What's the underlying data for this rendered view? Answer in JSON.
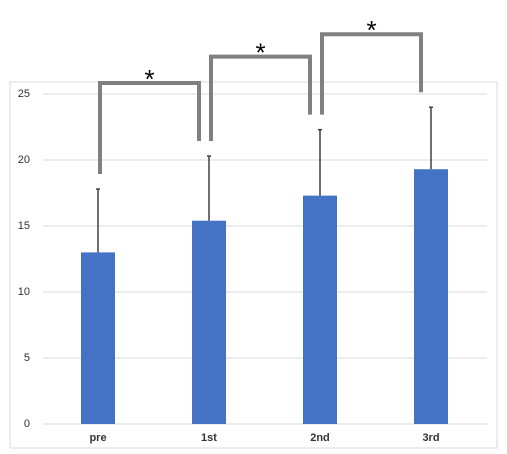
{
  "chart_data": {
    "type": "bar",
    "categories": [
      "pre",
      "1st",
      "2nd",
      "3rd"
    ],
    "values": [
      13.0,
      15.4,
      17.3,
      19.3
    ],
    "errors": [
      4.8,
      4.9,
      5.0,
      4.7
    ],
    "color": "#4472c4",
    "ylim": [
      0,
      25
    ],
    "yticks": [
      0,
      5,
      10,
      15,
      20,
      25
    ],
    "grid": true,
    "annotations": [
      "*",
      "*",
      "*"
    ]
  }
}
